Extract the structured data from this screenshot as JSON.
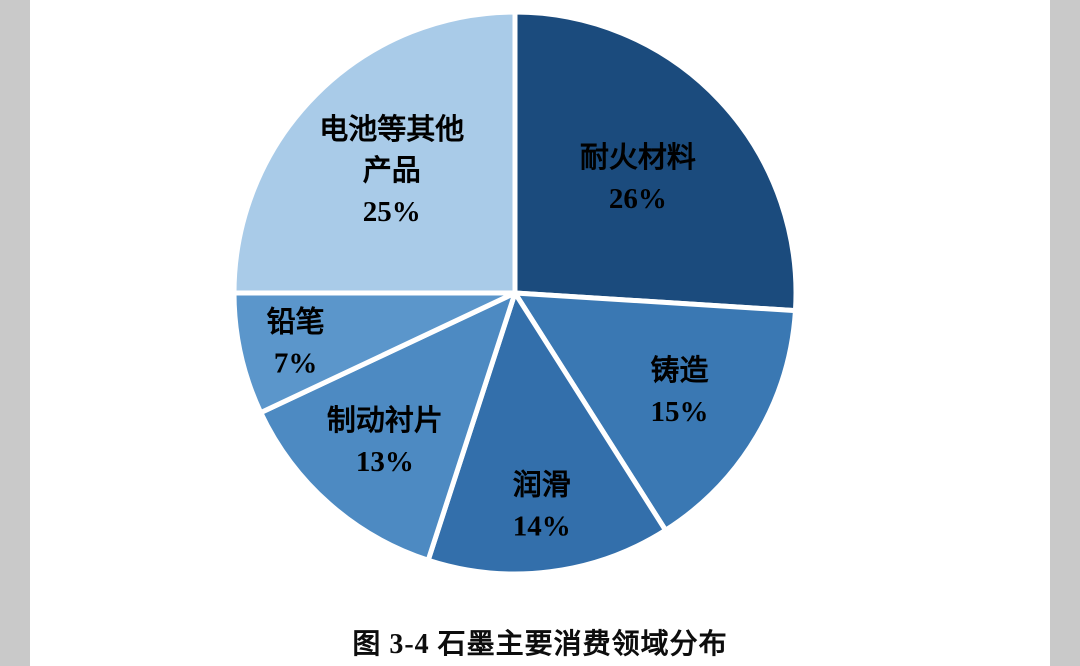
{
  "chart_data": {
    "type": "pie",
    "title": "图 3-4  石墨主要消费领域分布",
    "direction": "clockwise",
    "start_angle": "top",
    "total": 100,
    "legend_position": "none",
    "label_text_color": "#000000",
    "separator_color": "#ffffff",
    "slices": [
      {
        "label": "耐火材料",
        "value": 26,
        "pct_label": "26%",
        "color": "#1b4b7d",
        "label_lines": [
          "耐火材料",
          "26%"
        ],
        "label_r": 0.6
      },
      {
        "label": "铸造",
        "value": 15,
        "pct_label": "15%",
        "color": "#3a78b3",
        "label_lines": [
          "铸造",
          "15%"
        ],
        "label_r": 0.68
      },
      {
        "label": "润滑",
        "value": 14,
        "pct_label": "14%",
        "color": "#336fab",
        "label_lines": [
          "润滑",
          "14%"
        ],
        "label_r": 0.76
      },
      {
        "label": "制动衬片",
        "value": 13,
        "pct_label": "13%",
        "color": "#4d8ac2",
        "label_lines": [
          "制动衬片",
          "13%"
        ],
        "label_r": 0.7
      },
      {
        "label": "铅笔",
        "value": 7,
        "pct_label": "7%",
        "color": "#5b96cb",
        "label_lines": [
          "铅笔",
          "7%"
        ],
        "label_r": 0.8
      },
      {
        "label": "电池等其他产品",
        "value": 25,
        "pct_label": "25%",
        "color": "#a9cbe8",
        "label_lines": [
          "电池等其他",
          "产品",
          "25%"
        ],
        "label_r": 0.62
      }
    ]
  }
}
